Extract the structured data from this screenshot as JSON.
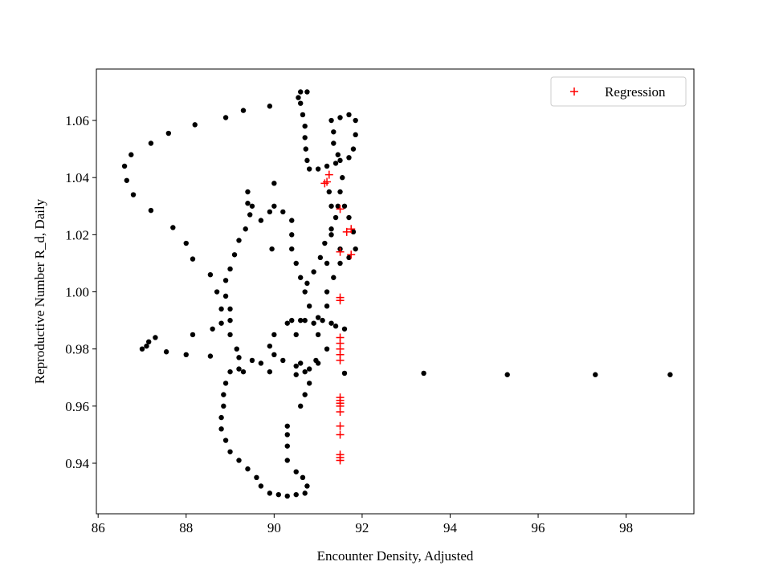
{
  "chart_data": {
    "type": "scatter",
    "x_label": "Encounter Density, Adjusted",
    "y_label": "Reproductive Number R_d, Daily",
    "xlim": [
      85.96,
      99.54
    ],
    "ylim": [
      0.9223,
      1.078
    ],
    "xticks": [
      86,
      88,
      90,
      92,
      94,
      96,
      98
    ],
    "yticks": [
      0.94,
      0.96,
      0.98,
      {
        "value": 1.0,
        "label": "1.00"
      },
      1.02,
      1.04,
      1.06
    ],
    "legend": "upper right",
    "series": [
      {
        "color": "#000000",
        "marker": "o",
        "x": [
          99,
          97.3,
          95.3,
          93.4,
          91.6,
          89.9,
          89.3,
          88.9,
          88.2,
          87.6,
          87.2,
          86.75,
          86.6,
          86.65,
          86.8,
          87.2,
          87.7,
          88,
          88.15,
          88.55,
          88.7,
          88.8,
          88.6,
          88.15,
          88,
          87.55,
          87.3,
          87.15,
          87.1,
          87,
          88.55,
          89.4,
          89.4,
          89.45,
          89.35,
          89.2,
          89.1,
          89,
          88.9,
          88.9,
          89,
          89,
          88.8,
          89,
          89.15,
          89.2,
          89.2,
          89,
          88.9,
          88.85,
          88.85,
          88.8,
          88.8,
          88.9,
          89,
          89.2,
          89.4,
          89.6,
          89.7,
          89.9,
          90.1,
          90.3,
          90.5,
          90.7,
          90.75,
          90.65,
          90.5,
          90.3,
          90.3,
          90.3,
          90.3,
          90.6,
          90.7,
          90.8,
          90.7,
          90.5,
          90.2,
          90,
          89.9,
          90,
          90.3,
          90.6,
          91,
          91.3,
          91.6,
          89.5,
          89.7,
          89.9,
          90,
          90.2,
          90.4,
          90.4,
          90.4,
          90.5,
          90.6,
          90.7,
          90.8,
          90.7,
          90.5,
          90.55,
          90.6,
          90.75,
          90.6,
          90.65,
          90.7,
          90.7,
          90.72,
          90.75,
          90.8,
          91,
          91.2,
          91.4,
          91.5,
          91.7,
          91.8,
          91.85,
          91.85,
          91.7,
          91.5,
          91.3,
          91.35,
          91.35,
          91.45,
          91.55,
          91.5,
          91.45,
          91.4,
          91.3,
          91.15,
          91.05,
          90.9,
          90.75,
          91.2,
          91.3,
          91.3,
          91.25,
          91.6,
          91.7,
          91.8,
          91.85,
          91.7,
          91.5,
          91.5,
          91.35,
          91.2,
          91.2,
          91.1,
          91,
          91.2,
          91,
          90.8,
          90.5,
          89.9,
          89.7,
          89.5,
          89.3,
          90,
          89.95,
          90.4,
          90.9,
          91.4,
          90.6,
          90.95
        ],
        "values": [
          0.971,
          0.971,
          0.971,
          0.9715,
          0.9715,
          1.065,
          1.0635,
          1.061,
          1.0585,
          1.0555,
          1.052,
          1.048,
          1.044,
          1.039,
          1.034,
          1.0285,
          1.0225,
          1.017,
          1.0115,
          1.006,
          1.0,
          0.994,
          0.987,
          0.985,
          0.978,
          0.979,
          0.984,
          0.9825,
          0.981,
          0.98,
          0.9775,
          1.035,
          1.031,
          1.027,
          1.022,
          1.018,
          1.013,
          1.008,
          1.004,
          0.9985,
          0.994,
          0.99,
          0.989,
          0.985,
          0.98,
          0.977,
          0.973,
          0.972,
          0.968,
          0.964,
          0.96,
          0.956,
          0.952,
          0.948,
          0.944,
          0.941,
          0.938,
          0.935,
          0.932,
          0.9295,
          0.929,
          0.9285,
          0.929,
          0.9295,
          0.932,
          0.935,
          0.937,
          0.941,
          0.946,
          0.95,
          0.953,
          0.96,
          0.964,
          0.968,
          0.972,
          0.974,
          0.976,
          0.978,
          0.981,
          0.985,
          0.989,
          0.99,
          0.991,
          0.989,
          0.987,
          1.03,
          1.025,
          1.028,
          1.03,
          1.028,
          1.025,
          1.02,
          1.015,
          1.01,
          1.005,
          1.0,
          0.995,
          0.99,
          0.985,
          1.068,
          1.07,
          1.07,
          1.066,
          1.062,
          1.058,
          1.054,
          1.05,
          1.046,
          1.043,
          1.043,
          1.044,
          1.045,
          1.046,
          1.047,
          1.05,
          1.055,
          1.06,
          1.062,
          1.061,
          1.06,
          1.056,
          1.052,
          1.048,
          1.04,
          1.035,
          1.03,
          1.026,
          1.022,
          1.017,
          1.012,
          1.007,
          1.003,
          1.01,
          1.02,
          1.03,
          1.035,
          1.03,
          1.026,
          1.021,
          1.015,
          1.012,
          1.015,
          1.01,
          1.005,
          1.0,
          0.995,
          0.99,
          0.985,
          0.98,
          0.975,
          0.973,
          0.971,
          0.972,
          0.975,
          0.976,
          0.972,
          1.038,
          1.015,
          0.99,
          0.989,
          0.988,
          0.975,
          0.976
        ]
      },
      {
        "name": "Regression",
        "color": "#ff0000",
        "marker": "+",
        "x": [
          91.5,
          91.5,
          91.5,
          91.5,
          91.5,
          91.5,
          91.5,
          91.5,
          91.5,
          91.5,
          91.5,
          91.5,
          91.5,
          91.5,
          91.5,
          91.5,
          91.5,
          91.5,
          91.5,
          91.15,
          91.2,
          91.25,
          91.65,
          91.75,
          91.75
        ],
        "values": [
          0.941,
          0.942,
          0.943,
          0.95,
          0.953,
          0.958,
          0.96,
          0.961,
          0.962,
          0.963,
          0.976,
          0.978,
          0.98,
          0.982,
          0.984,
          0.997,
          0.998,
          1.014,
          1.029,
          1.038,
          1.0385,
          1.041,
          1.021,
          1.022,
          1.013
        ]
      }
    ]
  }
}
